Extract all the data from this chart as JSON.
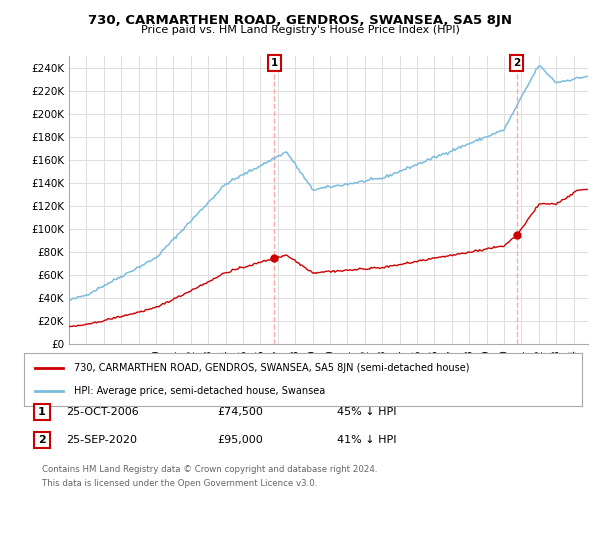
{
  "title": "730, CARMARTHEN ROAD, GENDROS, SWANSEA, SA5 8JN",
  "subtitle": "Price paid vs. HM Land Registry's House Price Index (HPI)",
  "ylabel_ticks": [
    "£0",
    "£20K",
    "£40K",
    "£60K",
    "£80K",
    "£100K",
    "£120K",
    "£140K",
    "£160K",
    "£180K",
    "£200K",
    "£220K",
    "£240K"
  ],
  "ytick_values": [
    0,
    20000,
    40000,
    60000,
    80000,
    100000,
    120000,
    140000,
    160000,
    180000,
    200000,
    220000,
    240000
  ],
  "ylim": [
    0,
    250000
  ],
  "xlim_start": 1995.0,
  "xlim_end": 2024.83,
  "hpi_color": "#7bbcdc",
  "price_color": "#cc0000",
  "sale1_date": 2006.81,
  "sale1_price": 74500,
  "sale2_date": 2020.73,
  "sale2_price": 95000,
  "legend_label1": "730, CARMARTHEN ROAD, GENDROS, SWANSEA, SA5 8JN (semi-detached house)",
  "legend_label2": "HPI: Average price, semi-detached house, Swansea",
  "bg_color": "#ffffff",
  "grid_color": "#dddddd",
  "vline_color": "#ffaaaa"
}
